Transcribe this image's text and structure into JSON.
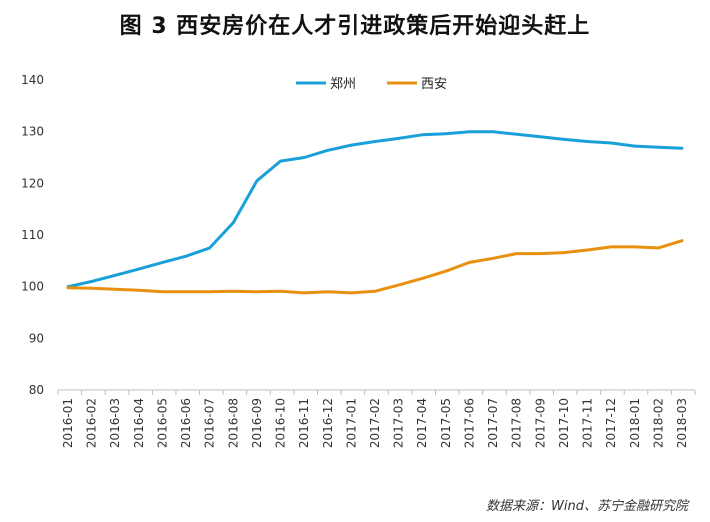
{
  "page": {
    "title": "图 3  西安房价在人才引进政策后开始迎头赶上",
    "source": "数据来源：Wind、苏宁金融研究院"
  },
  "colors": {
    "zhengzhou": "#1aa0d8",
    "xian": "#e8900f",
    "axis": "#bfbfbf"
  },
  "chart_data": {
    "type": "line",
    "title": "图 3  西安房价在人才引进政策后开始迎头赶上",
    "xlabel": "",
    "ylabel": "",
    "ylim": [
      80,
      140
    ],
    "yticks": [
      80,
      90,
      100,
      110,
      120,
      130,
      140
    ],
    "grid": false,
    "legend_position": "top-center",
    "x": [
      "2016-01",
      "2016-02",
      "2016-03",
      "2016-04",
      "2016-05",
      "2016-06",
      "2016-07",
      "2016-08",
      "2016-09",
      "2016-10",
      "2016-11",
      "2016-12",
      "2017-01",
      "2017-02",
      "2017-03",
      "2017-04",
      "2017-05",
      "2017-06",
      "2017-07",
      "2017-08",
      "2017-09",
      "2017-10",
      "2017-11",
      "2017-12",
      "2018-01",
      "2018-02",
      "2018-03"
    ],
    "series": [
      {
        "name": "郑州",
        "color": "#1aa0d8",
        "values": [
          100.0,
          101.0,
          102.2,
          103.4,
          104.7,
          105.9,
          107.5,
          112.4,
          120.5,
          124.3,
          125.0,
          126.4,
          127.4,
          128.1,
          128.7,
          129.4,
          129.6,
          130.0,
          130.0,
          129.5,
          129.0,
          128.5,
          128.1,
          127.8,
          127.2,
          127.0,
          126.8
        ]
      },
      {
        "name": "西安",
        "color": "#e8900f",
        "values": [
          99.8,
          99.7,
          99.5,
          99.3,
          99.0,
          99.0,
          99.0,
          99.1,
          99.0,
          99.1,
          98.8,
          99.0,
          98.8,
          99.1,
          100.3,
          101.6,
          103.0,
          104.7,
          105.5,
          106.4,
          106.4,
          106.6,
          107.1,
          107.7,
          107.7,
          107.5,
          108.9
        ]
      }
    ]
  }
}
